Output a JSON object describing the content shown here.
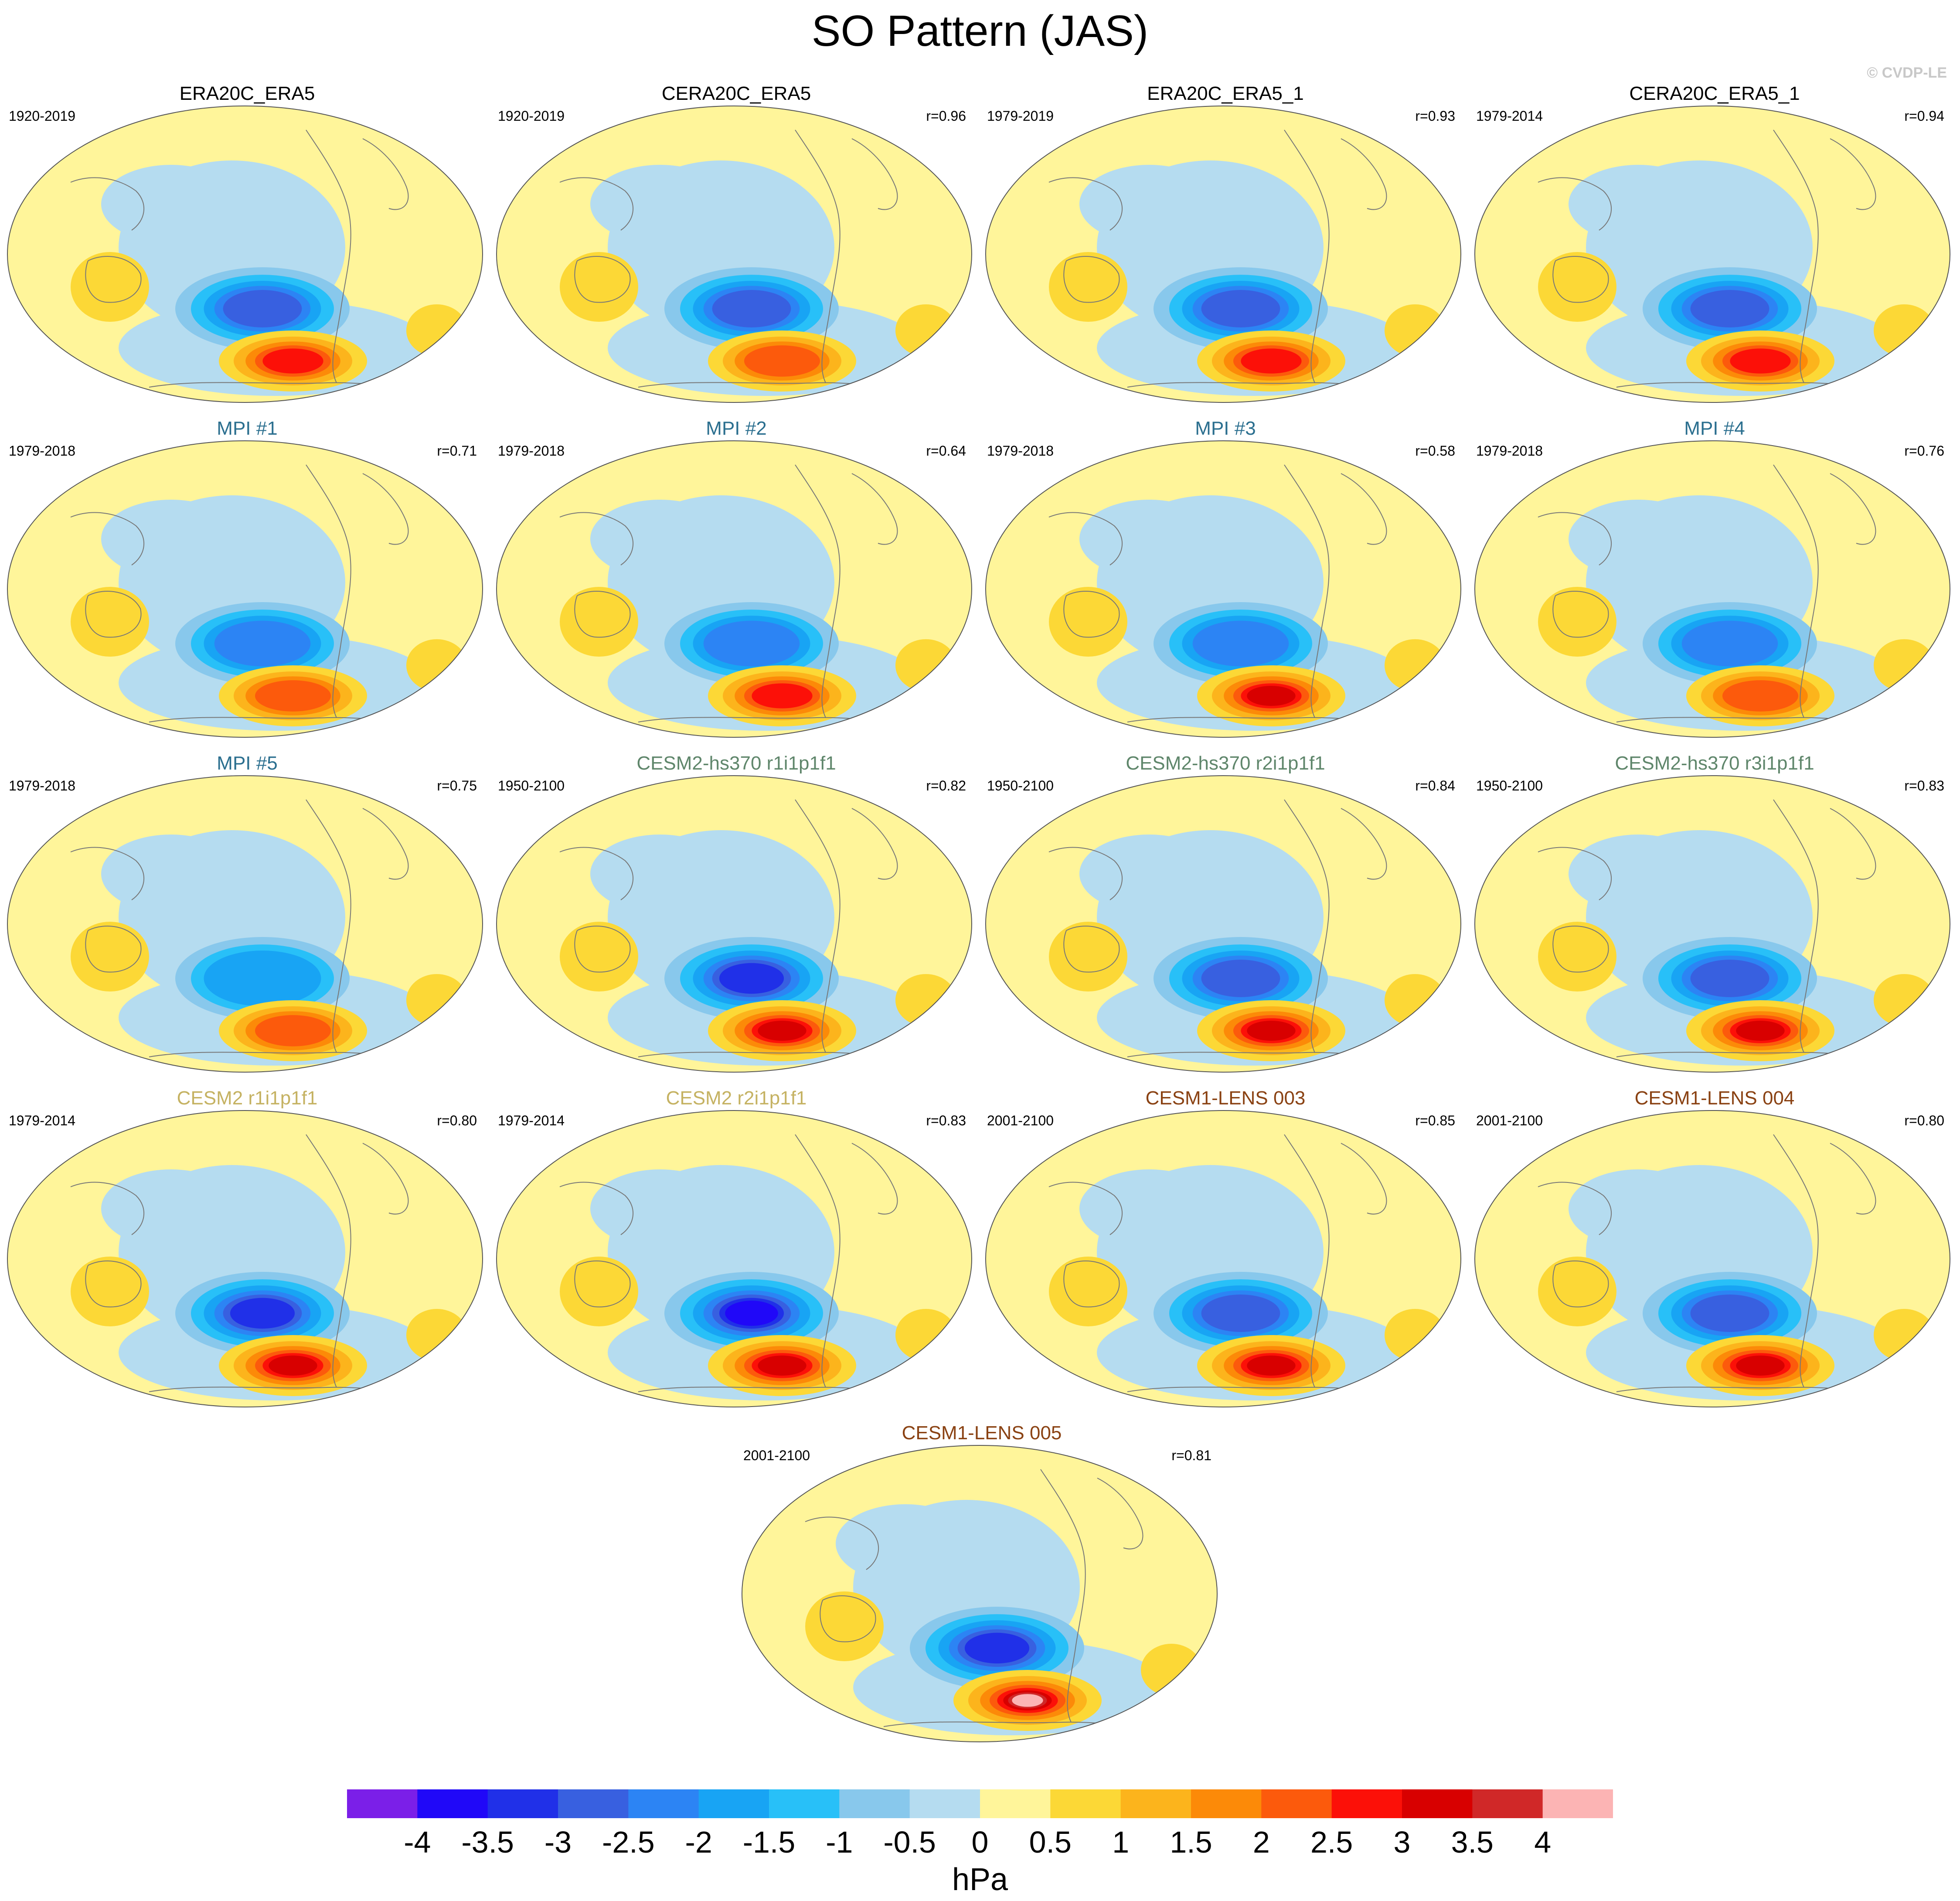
{
  "title": "SO Pattern (JAS)",
  "credit": "© CVDP-LE",
  "colors": {
    "ocean_base": "#b5dcf0",
    "land_base": "#fff59a",
    "outline": "#777777",
    "title_black": "#000000",
    "title_mpi": "#2b6f8f",
    "title_hs370": "#5f866b",
    "title_cesm2": "#c5b262",
    "title_lens": "#8a4213"
  },
  "panels": [
    {
      "name": "ERA20C_ERA5",
      "period": "1920-2019",
      "r": "",
      "title_color": "#000000"
    },
    {
      "name": "CERA20C_ERA5",
      "period": "1920-2019",
      "r": "r=0.96",
      "title_color": "#000000"
    },
    {
      "name": "ERA20C_ERA5_1",
      "period": "1979-2019",
      "r": "r=0.93",
      "title_color": "#000000"
    },
    {
      "name": "CERA20C_ERA5_1",
      "period": "1979-2014",
      "r": "r=0.94",
      "title_color": "#000000"
    },
    {
      "name": "MPI #1",
      "period": "1979-2018",
      "r": "r=0.71",
      "title_color": "#2b6f8f"
    },
    {
      "name": "MPI #2",
      "period": "1979-2018",
      "r": "r=0.64",
      "title_color": "#2b6f8f"
    },
    {
      "name": "MPI #3",
      "period": "1979-2018",
      "r": "r=0.58",
      "title_color": "#2b6f8f"
    },
    {
      "name": "MPI #4",
      "period": "1979-2018",
      "r": "r=0.76",
      "title_color": "#2b6f8f"
    },
    {
      "name": "MPI #5",
      "period": "1979-2018",
      "r": "r=0.75",
      "title_color": "#2b6f8f"
    },
    {
      "name": "CESM2-hs370 r1i1p1f1",
      "period": "1950-2100",
      "r": "r=0.82",
      "title_color": "#5f866b"
    },
    {
      "name": "CESM2-hs370 r2i1p1f1",
      "period": "1950-2100",
      "r": "r=0.84",
      "title_color": "#5f866b"
    },
    {
      "name": "CESM2-hs370 r3i1p1f1",
      "period": "1950-2100",
      "r": "r=0.83",
      "title_color": "#5f866b"
    },
    {
      "name": "CESM2 r1i1p1f1",
      "period": "1979-2014",
      "r": "r=0.80",
      "title_color": "#c5b262"
    },
    {
      "name": "CESM2 r2i1p1f1",
      "period": "1979-2014",
      "r": "r=0.83",
      "title_color": "#c5b262"
    },
    {
      "name": "CESM1-LENS 003",
      "period": "2001-2100",
      "r": "r=0.85",
      "title_color": "#8a4213"
    },
    {
      "name": "CESM1-LENS 004",
      "period": "2001-2100",
      "r": "r=0.80",
      "title_color": "#8a4213"
    },
    {
      "name": "CESM1-LENS 005",
      "period": "2001-2100",
      "r": "r=0.81",
      "title_color": "#8a4213"
    }
  ],
  "chart_data": {
    "type": "heatmap",
    "title": "SO Pattern (JAS)",
    "colorbar": {
      "unit": "hPa",
      "ticks": [
        "-4",
        "-3.5",
        "-3",
        "-2.5",
        "-2",
        "-1.5",
        "-1",
        "-0.5",
        "0",
        "0.5",
        "1",
        "1.5",
        "2",
        "2.5",
        "3",
        "3.5",
        "4"
      ],
      "colors": [
        "#7b1fe8",
        "#2008f8",
        "#2030e8",
        "#3860e0",
        "#2c84f4",
        "#18a4f4",
        "#28c0f8",
        "#88c8ec",
        "#b5dcf0",
        "#fff59a",
        "#fcd836",
        "#fcb41c",
        "#fc8a08",
        "#fc5a0c",
        "#fc1008",
        "#d80000",
        "#d02828",
        "#fcb4b4"
      ]
    },
    "panel_features": [
      {
        "low": -2.5,
        "high": 2.5
      },
      {
        "low": -2.5,
        "high": 2.0
      },
      {
        "low": -2.5,
        "high": 2.5
      },
      {
        "low": -2.5,
        "high": 2.5
      },
      {
        "low": -2.0,
        "high": 2.0
      },
      {
        "low": -2.0,
        "high": 2.5
      },
      {
        "low": -2.0,
        "high": 3.0
      },
      {
        "low": -2.0,
        "high": 2.0
      },
      {
        "low": -1.5,
        "high": 2.0
      },
      {
        "low": -3.0,
        "high": 3.0
      },
      {
        "low": -2.5,
        "high": 3.0
      },
      {
        "low": -2.5,
        "high": 3.0
      },
      {
        "low": -3.0,
        "high": 3.0
      },
      {
        "low": -3.5,
        "high": 3.0
      },
      {
        "low": -2.5,
        "high": 3.0
      },
      {
        "low": -2.5,
        "high": 3.0
      },
      {
        "low": -3.0,
        "high": 4.0
      }
    ]
  }
}
